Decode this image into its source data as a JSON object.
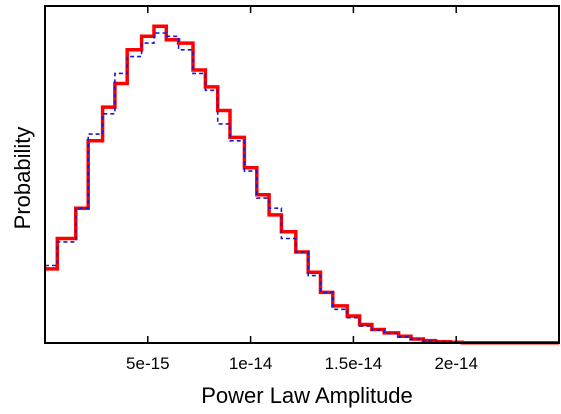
{
  "chart_data": {
    "type": "line",
    "title": "",
    "xlabel": "Power Law Amplitude",
    "ylabel": "Probability",
    "xlim": [
      0,
      2.5e-14
    ],
    "ylim": [
      0,
      1.0
    ],
    "xticks": [
      {
        "value": 5e-15,
        "label": "5e-15"
      },
      {
        "value": 1e-14,
        "label": "1e-14"
      },
      {
        "value": 1.5e-14,
        "label": "1.5e-14"
      },
      {
        "value": 2e-14,
        "label": "2e-14"
      }
    ],
    "yticks_shown": false,
    "grid": false,
    "legend": "none",
    "bin_edges": [
      0,
      6e-16,
      1.5e-15,
      2.1e-15,
      2.8e-15,
      3.4e-15,
      4e-15,
      4.7e-15,
      5.3e-15,
      5.9e-15,
      6.5e-15,
      7.2e-15,
      7.8e-15,
      8.4e-15,
      9e-15,
      9.7e-15,
      1.03e-14,
      1.09e-14,
      1.15e-14,
      1.22e-14,
      1.28e-14,
      1.34e-14,
      1.4e-14,
      1.47e-14,
      1.53e-14,
      1.59e-14,
      1.65e-14,
      1.72e-14,
      1.78e-14,
      1.84e-14,
      1.9e-14,
      1.97e-14,
      2.03e-14,
      2.5e-14
    ],
    "series": [
      {
        "color": "#ff0000",
        "style": "solid",
        "values": [
          0.22,
          0.31,
          0.4,
          0.6,
          0.7,
          0.77,
          0.87,
          0.91,
          0.94,
          0.9,
          0.89,
          0.81,
          0.76,
          0.69,
          0.61,
          0.52,
          0.44,
          0.38,
          0.33,
          0.27,
          0.21,
          0.15,
          0.11,
          0.08,
          0.055,
          0.04,
          0.03,
          0.02,
          0.012,
          0.007,
          0.004,
          0.002,
          0.001
        ]
      },
      {
        "color": "#1a1acc",
        "style": "dashed",
        "values": [
          0.23,
          0.3,
          0.4,
          0.62,
          0.68,
          0.8,
          0.85,
          0.89,
          0.92,
          0.91,
          0.87,
          0.8,
          0.75,
          0.65,
          0.6,
          0.51,
          0.43,
          0.4,
          0.31,
          0.27,
          0.2,
          0.15,
          0.1,
          0.075,
          0.05,
          0.038,
          0.028,
          0.018,
          0.011,
          0.006,
          0.004,
          0.002,
          0.001
        ]
      }
    ]
  }
}
